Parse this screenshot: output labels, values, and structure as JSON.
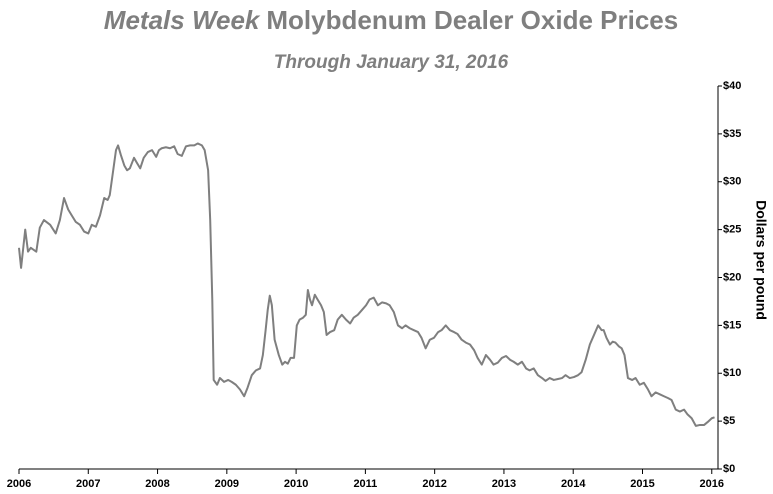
{
  "chart_data": {
    "type": "line",
    "title": [
      "Metals Week",
      "Molybdenum Dealer Oxide Prices"
    ],
    "subtitle": "Through January 31, 2016",
    "y_label": "Dollars per pound",
    "xlim": [
      2006,
      2016.09
    ],
    "xticks": [
      2006,
      2007,
      2008,
      2009,
      2010,
      2011,
      2012,
      2013,
      2014,
      2015,
      2016
    ],
    "ylim": [
      0,
      40
    ],
    "yticks": [
      {
        "value": 0,
        "label": "$0"
      },
      {
        "value": 5,
        "label": "$5"
      },
      {
        "value": 10,
        "label": "$10"
      },
      {
        "value": 15,
        "label": "$15"
      },
      {
        "value": 20,
        "label": "$20"
      },
      {
        "value": 25,
        "label": "$25"
      },
      {
        "value": 30,
        "label": "$30"
      },
      {
        "value": 35,
        "label": "$35"
      },
      {
        "value": 40,
        "label": "$40"
      }
    ],
    "series": [
      {
        "color": "#7f7f7f",
        "x": [
          2006.0,
          2006.03,
          2006.09,
          2006.13,
          2006.17,
          2006.25,
          2006.3,
          2006.36,
          2006.45,
          2006.53,
          2006.59,
          2006.65,
          2006.71,
          2006.76,
          2006.82,
          2006.88,
          2006.94,
          2007.0,
          2007.05,
          2007.11,
          2007.17,
          2007.23,
          2007.28,
          2007.31,
          2007.36,
          2007.4,
          2007.43,
          2007.47,
          2007.52,
          2007.56,
          2007.6,
          2007.66,
          2007.7,
          2007.75,
          2007.8,
          2007.86,
          2007.92,
          2007.98,
          2008.02,
          2008.06,
          2008.12,
          2008.18,
          2008.24,
          2008.29,
          2008.35,
          2008.41,
          2008.47,
          2008.53,
          2008.58,
          2008.64,
          2008.68,
          2008.73,
          2008.76,
          2008.79,
          2008.81,
          2008.86,
          2008.9,
          2008.96,
          2009.02,
          2009.07,
          2009.13,
          2009.19,
          2009.25,
          2009.3,
          2009.36,
          2009.42,
          2009.48,
          2009.52,
          2009.56,
          2009.59,
          2009.62,
          2009.65,
          2009.69,
          2009.75,
          2009.8,
          2009.84,
          2009.88,
          2009.92,
          2009.97,
          2010.01,
          2010.05,
          2010.1,
          2010.14,
          2010.17,
          2010.2,
          2010.23,
          2010.27,
          2010.31,
          2010.36,
          2010.4,
          2010.44,
          2010.49,
          2010.55,
          2010.6,
          2010.66,
          2010.72,
          2010.78,
          2010.83,
          2010.89,
          2010.95,
          2011.01,
          2011.06,
          2011.12,
          2011.18,
          2011.24,
          2011.3,
          2011.35,
          2011.41,
          2011.47,
          2011.53,
          2011.58,
          2011.64,
          2011.7,
          2011.76,
          2011.81,
          2011.87,
          2011.93,
          2011.99,
          2012.05,
          2012.1,
          2012.16,
          2012.22,
          2012.28,
          2012.33,
          2012.39,
          2012.45,
          2012.51,
          2012.57,
          2012.62,
          2012.68,
          2012.74,
          2012.8,
          2012.85,
          2012.91,
          2012.97,
          2013.03,
          2013.09,
          2013.14,
          2013.2,
          2013.26,
          2013.32,
          2013.37,
          2013.43,
          2013.49,
          2013.55,
          2013.6,
          2013.66,
          2013.72,
          2013.78,
          2013.84,
          2013.89,
          2013.95,
          2014.01,
          2014.07,
          2014.12,
          2014.18,
          2014.24,
          2014.3,
          2014.36,
          2014.41,
          2014.44,
          2014.48,
          2014.53,
          2014.57,
          2014.61,
          2014.66,
          2014.7,
          2014.74,
          2014.79,
          2014.85,
          2014.9,
          2014.96,
          2015.02,
          2015.08,
          2015.13,
          2015.19,
          2015.25,
          2015.31,
          2015.37,
          2015.42,
          2015.48,
          2015.54,
          2015.6,
          2015.65,
          2015.71,
          2015.77,
          2015.83,
          2015.89,
          2015.94,
          2016.0,
          2016.04
        ],
        "values": [
          23.1,
          21.0,
          25.0,
          22.7,
          23.1,
          22.7,
          25.2,
          26.0,
          25.5,
          24.6,
          26.0,
          28.3,
          27.1,
          26.5,
          25.8,
          25.5,
          24.8,
          24.6,
          25.5,
          25.3,
          26.5,
          28.3,
          28.1,
          28.6,
          31.2,
          33.3,
          33.8,
          32.8,
          31.7,
          31.2,
          31.4,
          32.5,
          32.0,
          31.4,
          32.5,
          33.1,
          33.3,
          32.6,
          33.3,
          33.5,
          33.6,
          33.5,
          33.7,
          32.9,
          32.7,
          33.7,
          33.8,
          33.8,
          34.0,
          33.8,
          33.3,
          31.2,
          26.0,
          17.7,
          9.3,
          8.8,
          9.5,
          9.1,
          9.3,
          9.1,
          8.8,
          8.3,
          7.6,
          8.5,
          9.8,
          10.3,
          10.5,
          11.9,
          14.5,
          16.6,
          18.1,
          17.1,
          13.5,
          11.9,
          10.9,
          11.2,
          11.0,
          11.6,
          11.6,
          15.0,
          15.6,
          15.8,
          16.1,
          18.7,
          17.7,
          17.1,
          18.2,
          17.7,
          17.1,
          16.4,
          14.0,
          14.3,
          14.5,
          15.6,
          16.1,
          15.6,
          15.2,
          15.8,
          16.1,
          16.6,
          17.1,
          17.7,
          17.9,
          17.1,
          17.4,
          17.3,
          17.1,
          16.4,
          15.0,
          14.7,
          15.0,
          14.7,
          14.5,
          14.3,
          13.7,
          12.6,
          13.5,
          13.7,
          14.3,
          14.5,
          15.0,
          14.5,
          14.3,
          14.1,
          13.5,
          13.2,
          13.0,
          12.4,
          11.6,
          10.9,
          11.9,
          11.4,
          10.9,
          11.1,
          11.6,
          11.8,
          11.4,
          11.2,
          10.9,
          11.2,
          10.5,
          10.3,
          10.5,
          9.8,
          9.5,
          9.2,
          9.5,
          9.3,
          9.4,
          9.5,
          9.8,
          9.5,
          9.6,
          9.8,
          10.1,
          11.4,
          13.0,
          14.0,
          15.0,
          14.5,
          14.5,
          13.7,
          13.0,
          13.3,
          13.2,
          12.8,
          12.6,
          11.9,
          9.5,
          9.3,
          9.5,
          8.8,
          9.0,
          8.3,
          7.6,
          8.0,
          7.8,
          7.6,
          7.4,
          7.2,
          6.2,
          6.0,
          6.2,
          5.7,
          5.3,
          4.5,
          4.6,
          4.6,
          4.9,
          5.3,
          5.4
        ]
      }
    ]
  }
}
